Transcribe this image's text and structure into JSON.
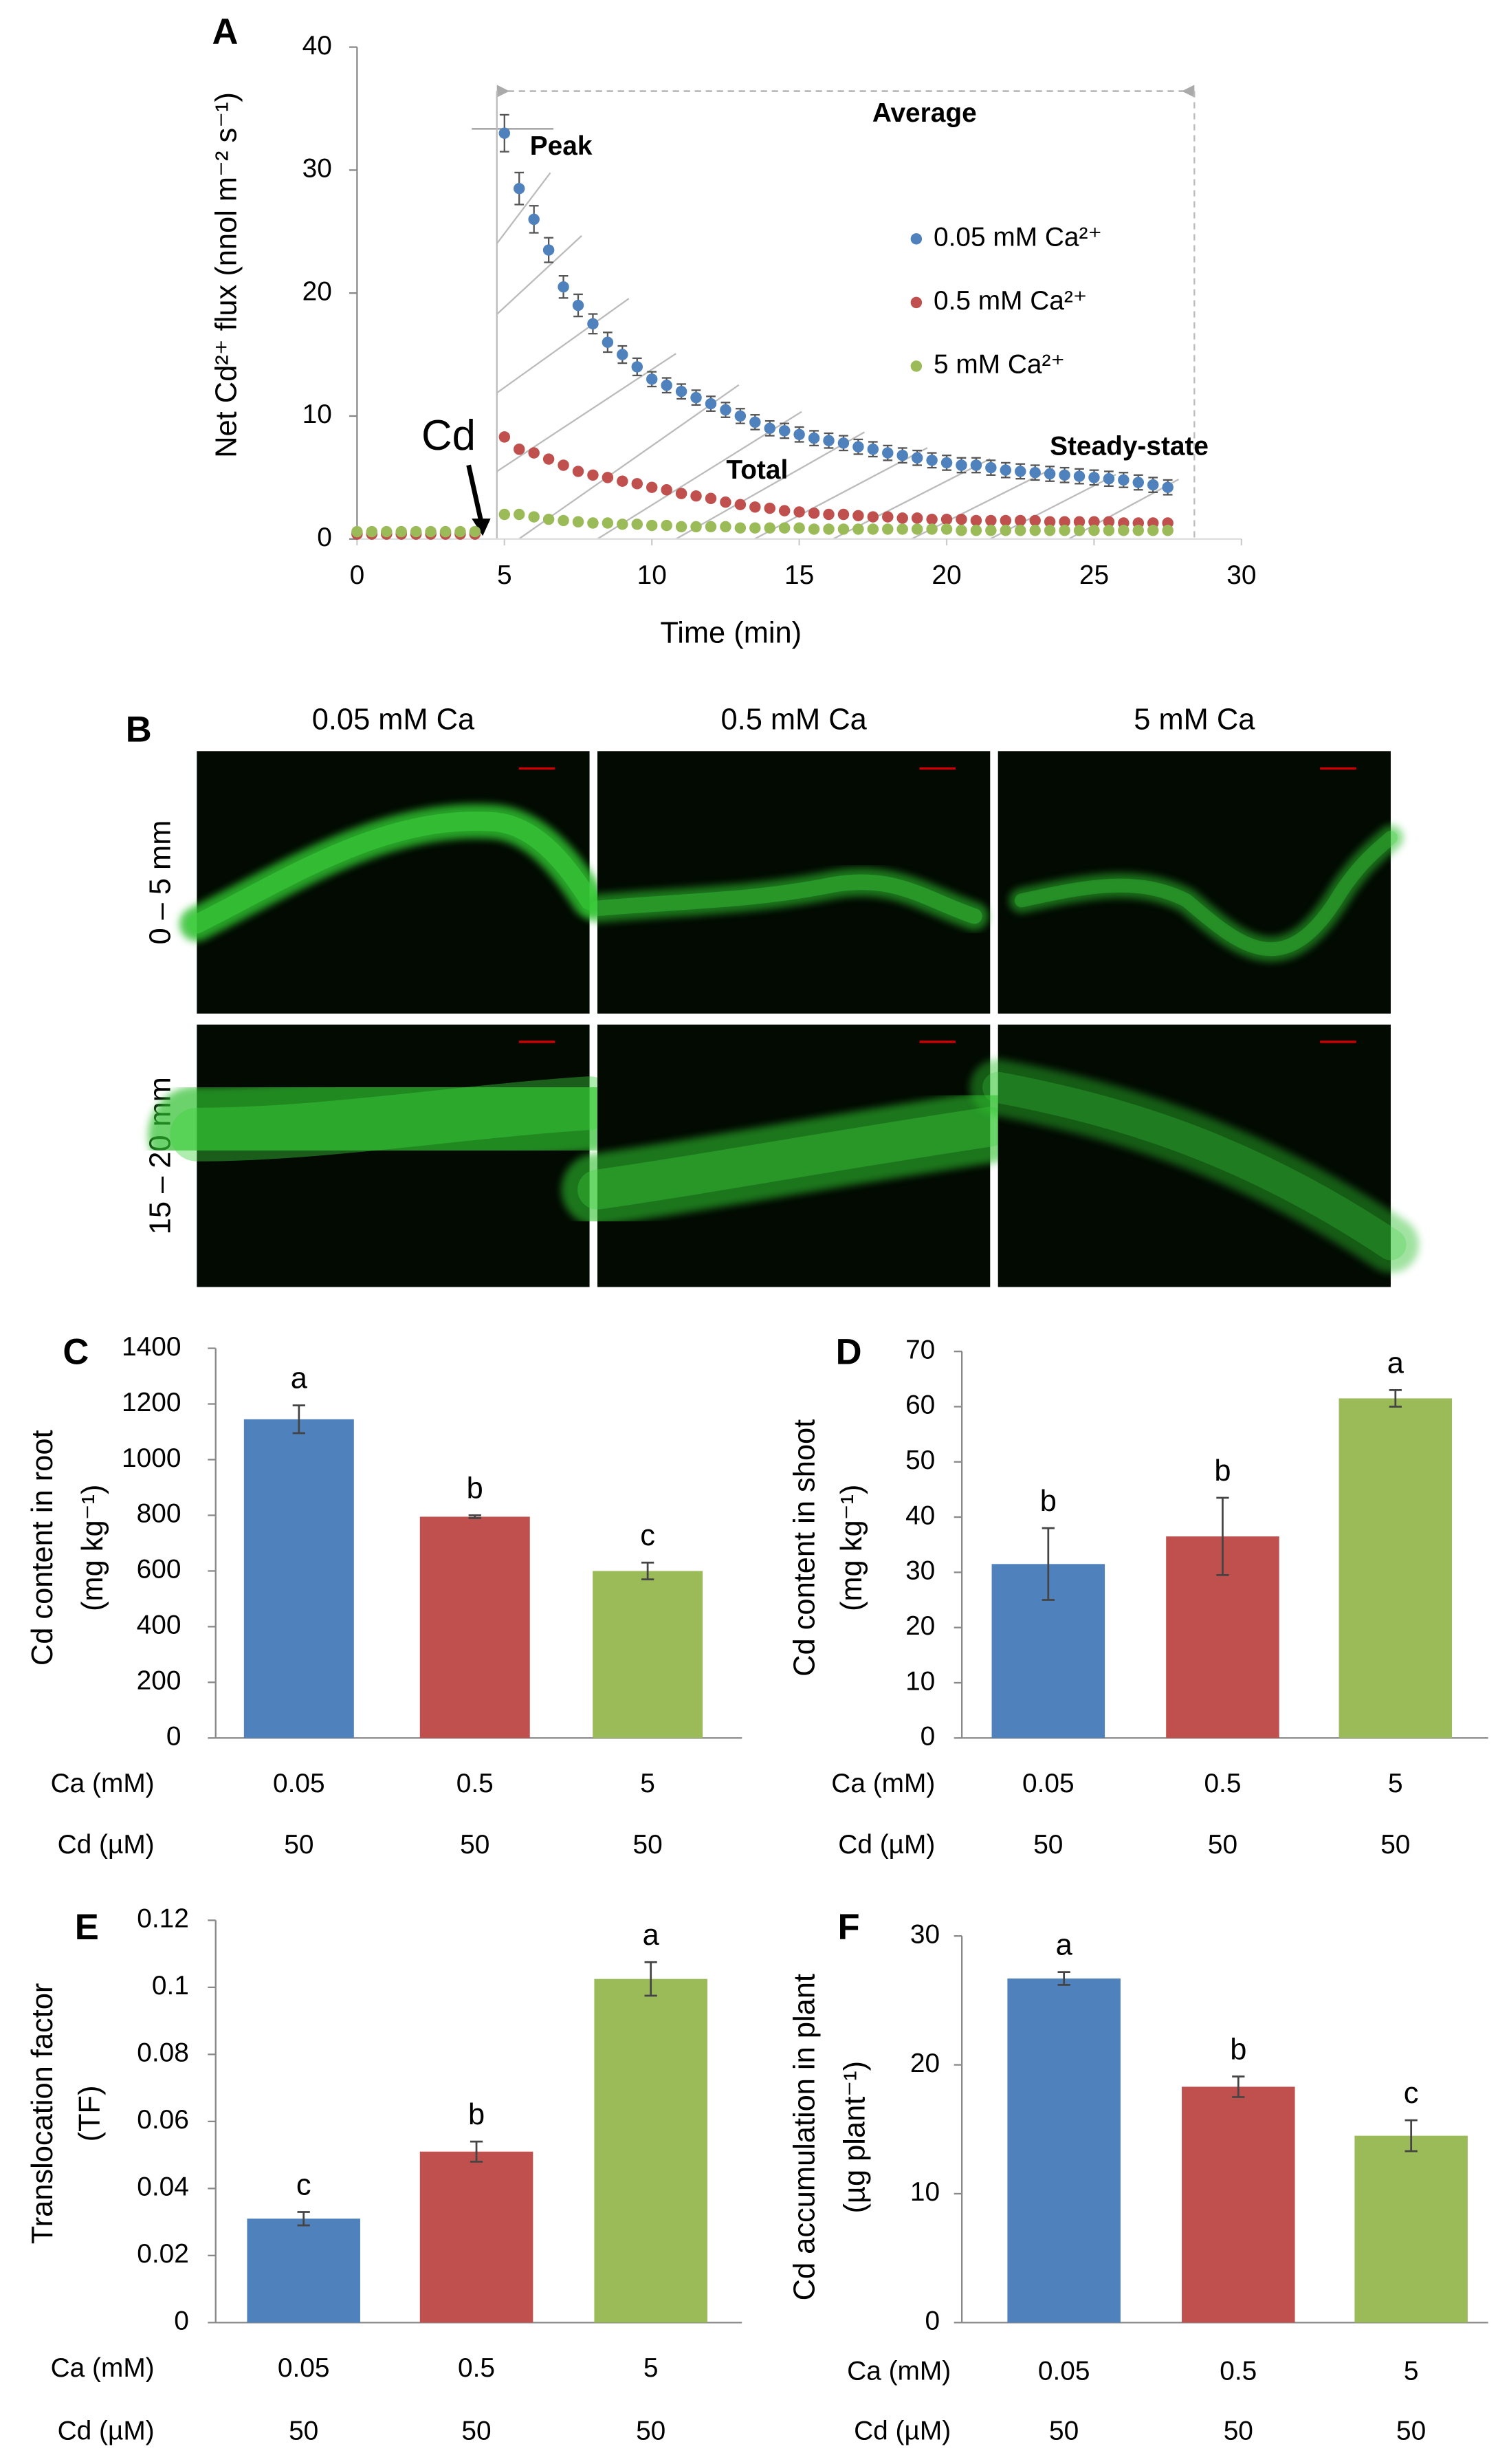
{
  "chart_data": [
    {
      "type": "scatter",
      "panel": "A",
      "xlabel": "Time (min)",
      "ylabel": "Net Cd²⁺ flux (nnol m⁻² s⁻¹)",
      "annotations": [
        "Peak",
        "Average",
        "Total",
        "Steady-state",
        "Cd"
      ],
      "x": [
        0,
        0.5,
        1,
        1.5,
        2,
        2.5,
        3,
        3.5,
        4,
        5,
        5.5,
        6,
        6.5,
        7,
        7.5,
        8,
        8.5,
        9,
        9.5,
        10,
        10.5,
        11,
        11.5,
        12,
        12.5,
        13,
        13.5,
        14,
        14.5,
        15,
        15.5,
        16,
        16.5,
        17,
        17.5,
        18,
        18.5,
        19,
        19.5,
        20,
        20.5,
        21,
        21.5,
        22,
        22.5,
        23,
        23.5,
        24,
        24.5,
        25,
        25.5,
        26,
        26.5,
        27,
        27.5
      ],
      "series": [
        {
          "name": "0.05 mM  Ca²⁺",
          "color": "#4f81bd",
          "values": [
            0.5,
            0.5,
            0.5,
            0.5,
            0.5,
            0.5,
            0.5,
            0.5,
            0.5,
            33,
            28.5,
            26,
            23.5,
            20.5,
            19,
            17.5,
            16,
            15,
            14,
            13,
            12.5,
            12,
            11.5,
            11,
            10.5,
            10,
            9.5,
            9,
            8.8,
            8.5,
            8.2,
            8,
            7.8,
            7.5,
            7.3,
            7,
            6.8,
            6.6,
            6.4,
            6.2,
            6,
            6,
            5.8,
            5.6,
            5.5,
            5.4,
            5.3,
            5.2,
            5.1,
            5,
            4.9,
            4.8,
            4.6,
            4.4,
            4.2
          ],
          "errors": [
            0.2,
            0.2,
            0.2,
            0.2,
            0.2,
            0.2,
            0.2,
            0.2,
            0.2,
            1.5,
            1.3,
            1.1,
            1,
            0.9,
            0.9,
            0.8,
            0.8,
            0.7,
            0.7,
            0.6,
            0.6,
            0.6,
            0.6,
            0.6,
            0.6,
            0.6,
            0.6,
            0.6,
            0.6,
            0.6,
            0.6,
            0.6,
            0.6,
            0.6,
            0.6,
            0.6,
            0.6,
            0.6,
            0.6,
            0.6,
            0.6,
            0.6,
            0.6,
            0.6,
            0.6,
            0.6,
            0.6,
            0.6,
            0.6,
            0.6,
            0.6,
            0.6,
            0.6,
            0.6,
            0.6
          ]
        },
        {
          "name": "0.5 mM  Ca²⁺",
          "color": "#c0504d",
          "values": [
            0.4,
            0.4,
            0.4,
            0.4,
            0.4,
            0.4,
            0.4,
            0.4,
            0.4,
            8.3,
            7.3,
            7,
            6.5,
            6,
            5.5,
            5.2,
            5,
            4.7,
            4.5,
            4.2,
            4,
            3.7,
            3.5,
            3.3,
            3,
            2.8,
            2.6,
            2.5,
            2.3,
            2.2,
            2.1,
            2,
            2,
            1.9,
            1.8,
            1.8,
            1.7,
            1.7,
            1.6,
            1.6,
            1.6,
            1.5,
            1.5,
            1.5,
            1.5,
            1.5,
            1.4,
            1.4,
            1.4,
            1.4,
            1.4,
            1.3,
            1.3,
            1.3,
            1.3
          ]
        },
        {
          "name": "5 mM Ca²⁺",
          "color": "#9bbb59",
          "values": [
            0.6,
            0.6,
            0.6,
            0.6,
            0.6,
            0.6,
            0.6,
            0.6,
            0.6,
            2,
            2,
            1.8,
            1.6,
            1.5,
            1.4,
            1.3,
            1.3,
            1.2,
            1.2,
            1.1,
            1.1,
            1,
            1,
            1,
            1,
            0.9,
            0.9,
            0.9,
            0.9,
            0.9,
            0.8,
            0.8,
            0.8,
            0.8,
            0.8,
            0.8,
            0.8,
            0.8,
            0.8,
            0.8,
            0.7,
            0.7,
            0.7,
            0.7,
            0.7,
            0.7,
            0.7,
            0.7,
            0.7,
            0.7,
            0.7,
            0.7,
            0.7,
            0.7,
            0.7
          ]
        }
      ],
      "xlim": [
        0,
        30
      ],
      "xticks": [
        0,
        5,
        10,
        15,
        20,
        25,
        30
      ],
      "ylim": [
        0,
        40
      ],
      "yticks": [
        0,
        10,
        20,
        30,
        40
      ]
    },
    {
      "type": "image_grid",
      "panel": "B",
      "columns": [
        "0.05 mM Ca",
        "0.5 mM Ca",
        "5 mM Ca"
      ],
      "rows": [
        "0 – 5 mm",
        "15 – 20 mm"
      ]
    },
    {
      "type": "bar",
      "panel": "C",
      "ylabel": [
        "Cd content in root",
        "(mg kg⁻¹)"
      ],
      "categories_label": "Ca (mM)",
      "categories": [
        "0.05",
        "0.5",
        "5"
      ],
      "cd_label": "Cd (µM)",
      "cd_values": [
        "50",
        "50",
        "50"
      ],
      "values": [
        1145,
        795,
        600
      ],
      "errors": [
        50,
        5,
        30
      ],
      "letters": [
        "a",
        "b",
        "c"
      ],
      "colors": [
        "#4f81bd",
        "#c0504d",
        "#9bbb59"
      ],
      "ylim": [
        0,
        1400
      ],
      "yticks": [
        0,
        200,
        400,
        600,
        800,
        1000,
        1200,
        1400
      ]
    },
    {
      "type": "bar",
      "panel": "D",
      "ylabel": [
        "Cd content in shoot",
        "(mg kg⁻¹)"
      ],
      "categories_label": "Ca (mM)",
      "categories": [
        "0.05",
        "0.5",
        "5"
      ],
      "cd_label": "Cd (µM)",
      "cd_values": [
        "50",
        "50",
        "50"
      ],
      "values": [
        31.5,
        36.5,
        61.5
      ],
      "errors": [
        6.5,
        7,
        1.5
      ],
      "letters": [
        "b",
        "b",
        "a"
      ],
      "colors": [
        "#4f81bd",
        "#c0504d",
        "#9bbb59"
      ],
      "ylim": [
        0,
        70
      ],
      "yticks": [
        0,
        10,
        20,
        30,
        40,
        50,
        60,
        70
      ]
    },
    {
      "type": "bar",
      "panel": "E",
      "ylabel": [
        "Translocation factor",
        "(TF)"
      ],
      "categories_label": "Ca (mM)",
      "categories": [
        "0.05",
        "0.5",
        "5"
      ],
      "cd_label": "Cd (µM)",
      "cd_values": [
        "50",
        "50",
        "50"
      ],
      "values": [
        0.031,
        0.051,
        0.1025
      ],
      "errors": [
        0.002,
        0.003,
        0.005
      ],
      "letters": [
        "c",
        "b",
        "a"
      ],
      "colors": [
        "#4f81bd",
        "#c0504d",
        "#9bbb59"
      ],
      "ylim": [
        0,
        0.12
      ],
      "yticks": [
        0,
        0.02,
        0.04,
        0.06,
        0.08,
        0.1,
        0.12
      ]
    },
    {
      "type": "bar",
      "panel": "F",
      "ylabel": [
        "Cd accumulation in plant",
        "(µg plant⁻¹)"
      ],
      "categories_label": "Ca (mM)",
      "categories": [
        "0.05",
        "0.5",
        "5"
      ],
      "cd_label": "Cd (µM)",
      "cd_values": [
        "50",
        "50",
        "50"
      ],
      "values": [
        26.7,
        18.3,
        14.5
      ],
      "errors": [
        0.5,
        0.8,
        1.2
      ],
      "letters": [
        "a",
        "b",
        "c"
      ],
      "colors": [
        "#4f81bd",
        "#c0504d",
        "#9bbb59"
      ],
      "ylim": [
        0,
        30
      ],
      "yticks": [
        0,
        10,
        20,
        30
      ]
    }
  ]
}
